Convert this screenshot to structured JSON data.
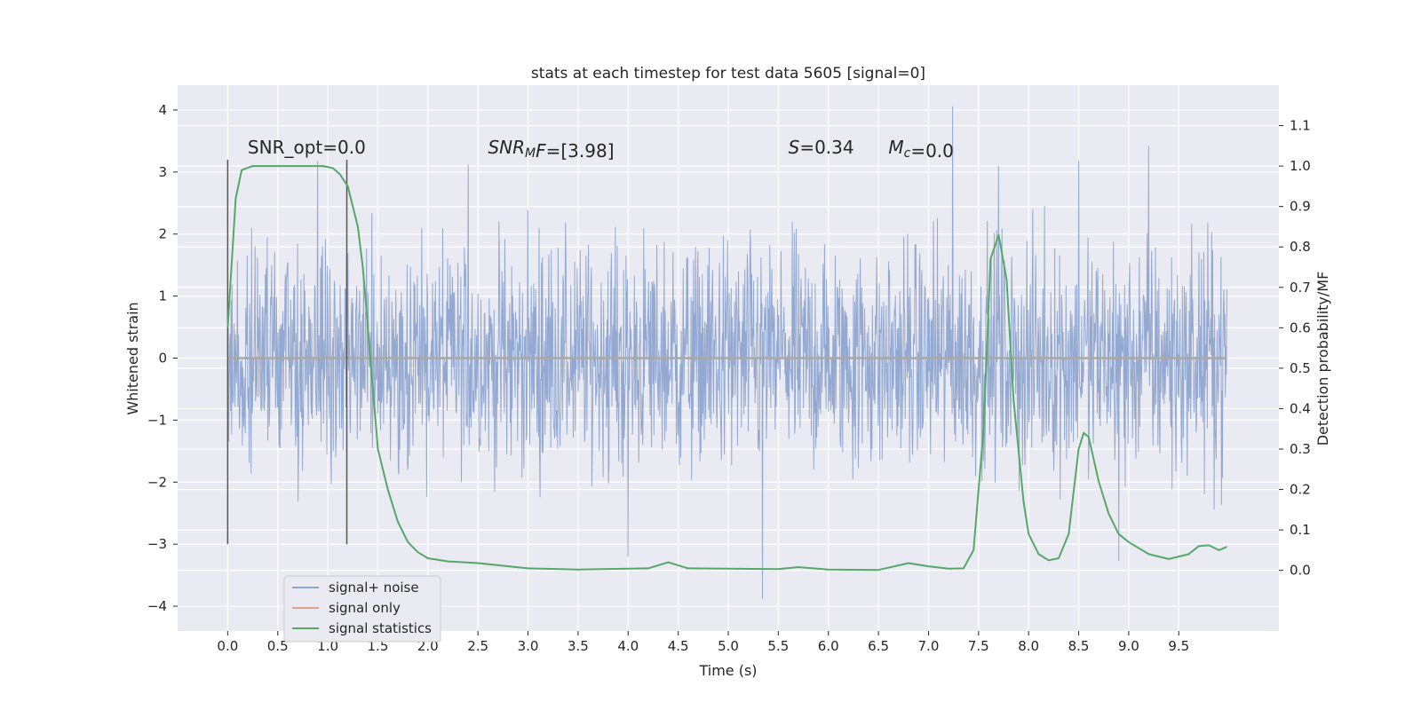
{
  "chart_data": {
    "type": "line",
    "title": "stats at each timestep for test data 5605 [signal=0]",
    "xlabel": "Time (s)",
    "ylabel": "Whitened strain",
    "y2label": "Detection probability/MF",
    "xlim": [
      -0.5,
      10.5
    ],
    "ylim": [
      -4.4,
      4.4
    ],
    "y2lim": [
      -0.15,
      1.2
    ],
    "x_ticks": [
      0.0,
      0.5,
      1.0,
      1.5,
      2.0,
      2.5,
      3.0,
      3.5,
      4.0,
      4.5,
      5.0,
      5.5,
      6.0,
      6.5,
      7.0,
      7.5,
      8.0,
      8.5,
      9.0,
      9.5
    ],
    "x_tick_labels": [
      "0.0",
      "0.5",
      "1.0",
      "1.5",
      "2.0",
      "2.5",
      "3.0",
      "3.5",
      "4.0",
      "4.5",
      "5.0",
      "5.5",
      "6.0",
      "6.5",
      "7.0",
      "7.5",
      "8.0",
      "8.5",
      "9.0",
      "9.5"
    ],
    "y_ticks": [
      -4,
      -3,
      -2,
      -1,
      0,
      1,
      2,
      3,
      4
    ],
    "y_tick_labels": [
      "−4",
      "−3",
      "−2",
      "−1",
      "0",
      "1",
      "2",
      "3",
      "4"
    ],
    "y2_ticks": [
      0.0,
      0.1,
      0.2,
      0.3,
      0.4,
      0.5,
      0.6,
      0.7,
      0.8,
      0.9,
      1.0,
      1.1
    ],
    "y2_tick_labels": [
      "0.0",
      "0.1",
      "0.2",
      "0.3",
      "0.4",
      "0.5",
      "0.6",
      "0.7",
      "0.8",
      "0.9",
      "1.0",
      "1.1"
    ],
    "grid": true,
    "legend_position": "bottom-left",
    "annotations": [
      {
        "x": 0.2,
        "y": 3.3,
        "parts": [
          {
            "text": "SNR_opt=0.0"
          }
        ]
      },
      {
        "x": 2.6,
        "y": 3.3,
        "parts": [
          {
            "text": "SNR",
            "italic": true
          },
          {
            "text": "M",
            "italic": true,
            "sub": true
          },
          {
            "text": "F",
            "italic": true
          },
          {
            "text": "=[3.98]"
          }
        ]
      },
      {
        "x": 5.6,
        "y": 3.3,
        "parts": [
          {
            "text": "S",
            "italic": true
          },
          {
            "text": "=0.34"
          }
        ]
      },
      {
        "x": 6.6,
        "y": 3.3,
        "parts": [
          {
            "text": "M",
            "italic": true
          },
          {
            "text": "c",
            "italic": true,
            "sub": true
          },
          {
            "text": "=0.0"
          }
        ]
      }
    ],
    "vlines": [
      {
        "x": 0.0,
        "y": [
          -3.0,
          3.2
        ]
      },
      {
        "x": 1.19,
        "y": [
          -3.0,
          3.2
        ]
      }
    ],
    "series": [
      {
        "name": "signal+ noise",
        "color": "#8fa5cf",
        "axis": "left",
        "sample_rate_hz": 204.8,
        "x_start": 0.0,
        "x_end": 9.98,
        "typical_range": [
          -1.3,
          1.3
        ],
        "extremes": [
          {
            "x": 0.9,
            "y": 3.18
          },
          {
            "x": 2.4,
            "y": 3.12
          },
          {
            "x": 4.0,
            "y": -3.2
          },
          {
            "x": 5.34,
            "y": -3.88
          },
          {
            "x": 7.24,
            "y": 4.06
          },
          {
            "x": 7.7,
            "y": 3.1
          },
          {
            "x": 8.5,
            "y": 3.18
          },
          {
            "x": 8.9,
            "y": -3.27
          },
          {
            "x": 9.2,
            "y": 3.42
          }
        ]
      },
      {
        "name": "signal only",
        "color": "#e0a08a",
        "axis": "left",
        "x": [
          0.0,
          9.98
        ],
        "y": [
          0.0,
          0.0
        ]
      },
      {
        "name": "signal statistics",
        "color": "#55a868",
        "axis": "right",
        "x": [
          0.0,
          0.08,
          0.14,
          0.25,
          0.4,
          0.6,
          0.8,
          0.95,
          1.05,
          1.12,
          1.2,
          1.25,
          1.3,
          1.35,
          1.4,
          1.45,
          1.5,
          1.6,
          1.7,
          1.8,
          1.9,
          2.0,
          2.2,
          2.5,
          3.0,
          3.5,
          4.0,
          4.2,
          4.4,
          4.6,
          5.0,
          5.5,
          5.7,
          6.0,
          6.5,
          6.8,
          7.0,
          7.2,
          7.35,
          7.45,
          7.55,
          7.62,
          7.7,
          7.78,
          7.85,
          7.95,
          8.0,
          8.1,
          8.2,
          8.3,
          8.4,
          8.5,
          8.55,
          8.6,
          8.7,
          8.8,
          8.9,
          9.0,
          9.2,
          9.4,
          9.6,
          9.7,
          9.8,
          9.9,
          9.98
        ],
        "y": [
          0.6,
          0.92,
          0.99,
          1.0,
          1.0,
          1.0,
          1.0,
          1.0,
          0.995,
          0.98,
          0.95,
          0.9,
          0.85,
          0.75,
          0.6,
          0.45,
          0.3,
          0.2,
          0.12,
          0.07,
          0.045,
          0.03,
          0.022,
          0.018,
          0.005,
          0.002,
          0.004,
          0.005,
          0.02,
          0.005,
          0.004,
          0.003,
          0.008,
          0.002,
          0.001,
          0.018,
          0.01,
          0.004,
          0.005,
          0.05,
          0.35,
          0.77,
          0.83,
          0.72,
          0.42,
          0.17,
          0.09,
          0.04,
          0.025,
          0.03,
          0.09,
          0.3,
          0.34,
          0.33,
          0.22,
          0.14,
          0.09,
          0.07,
          0.04,
          0.028,
          0.04,
          0.06,
          0.062,
          0.05,
          0.058
        ]
      }
    ]
  }
}
